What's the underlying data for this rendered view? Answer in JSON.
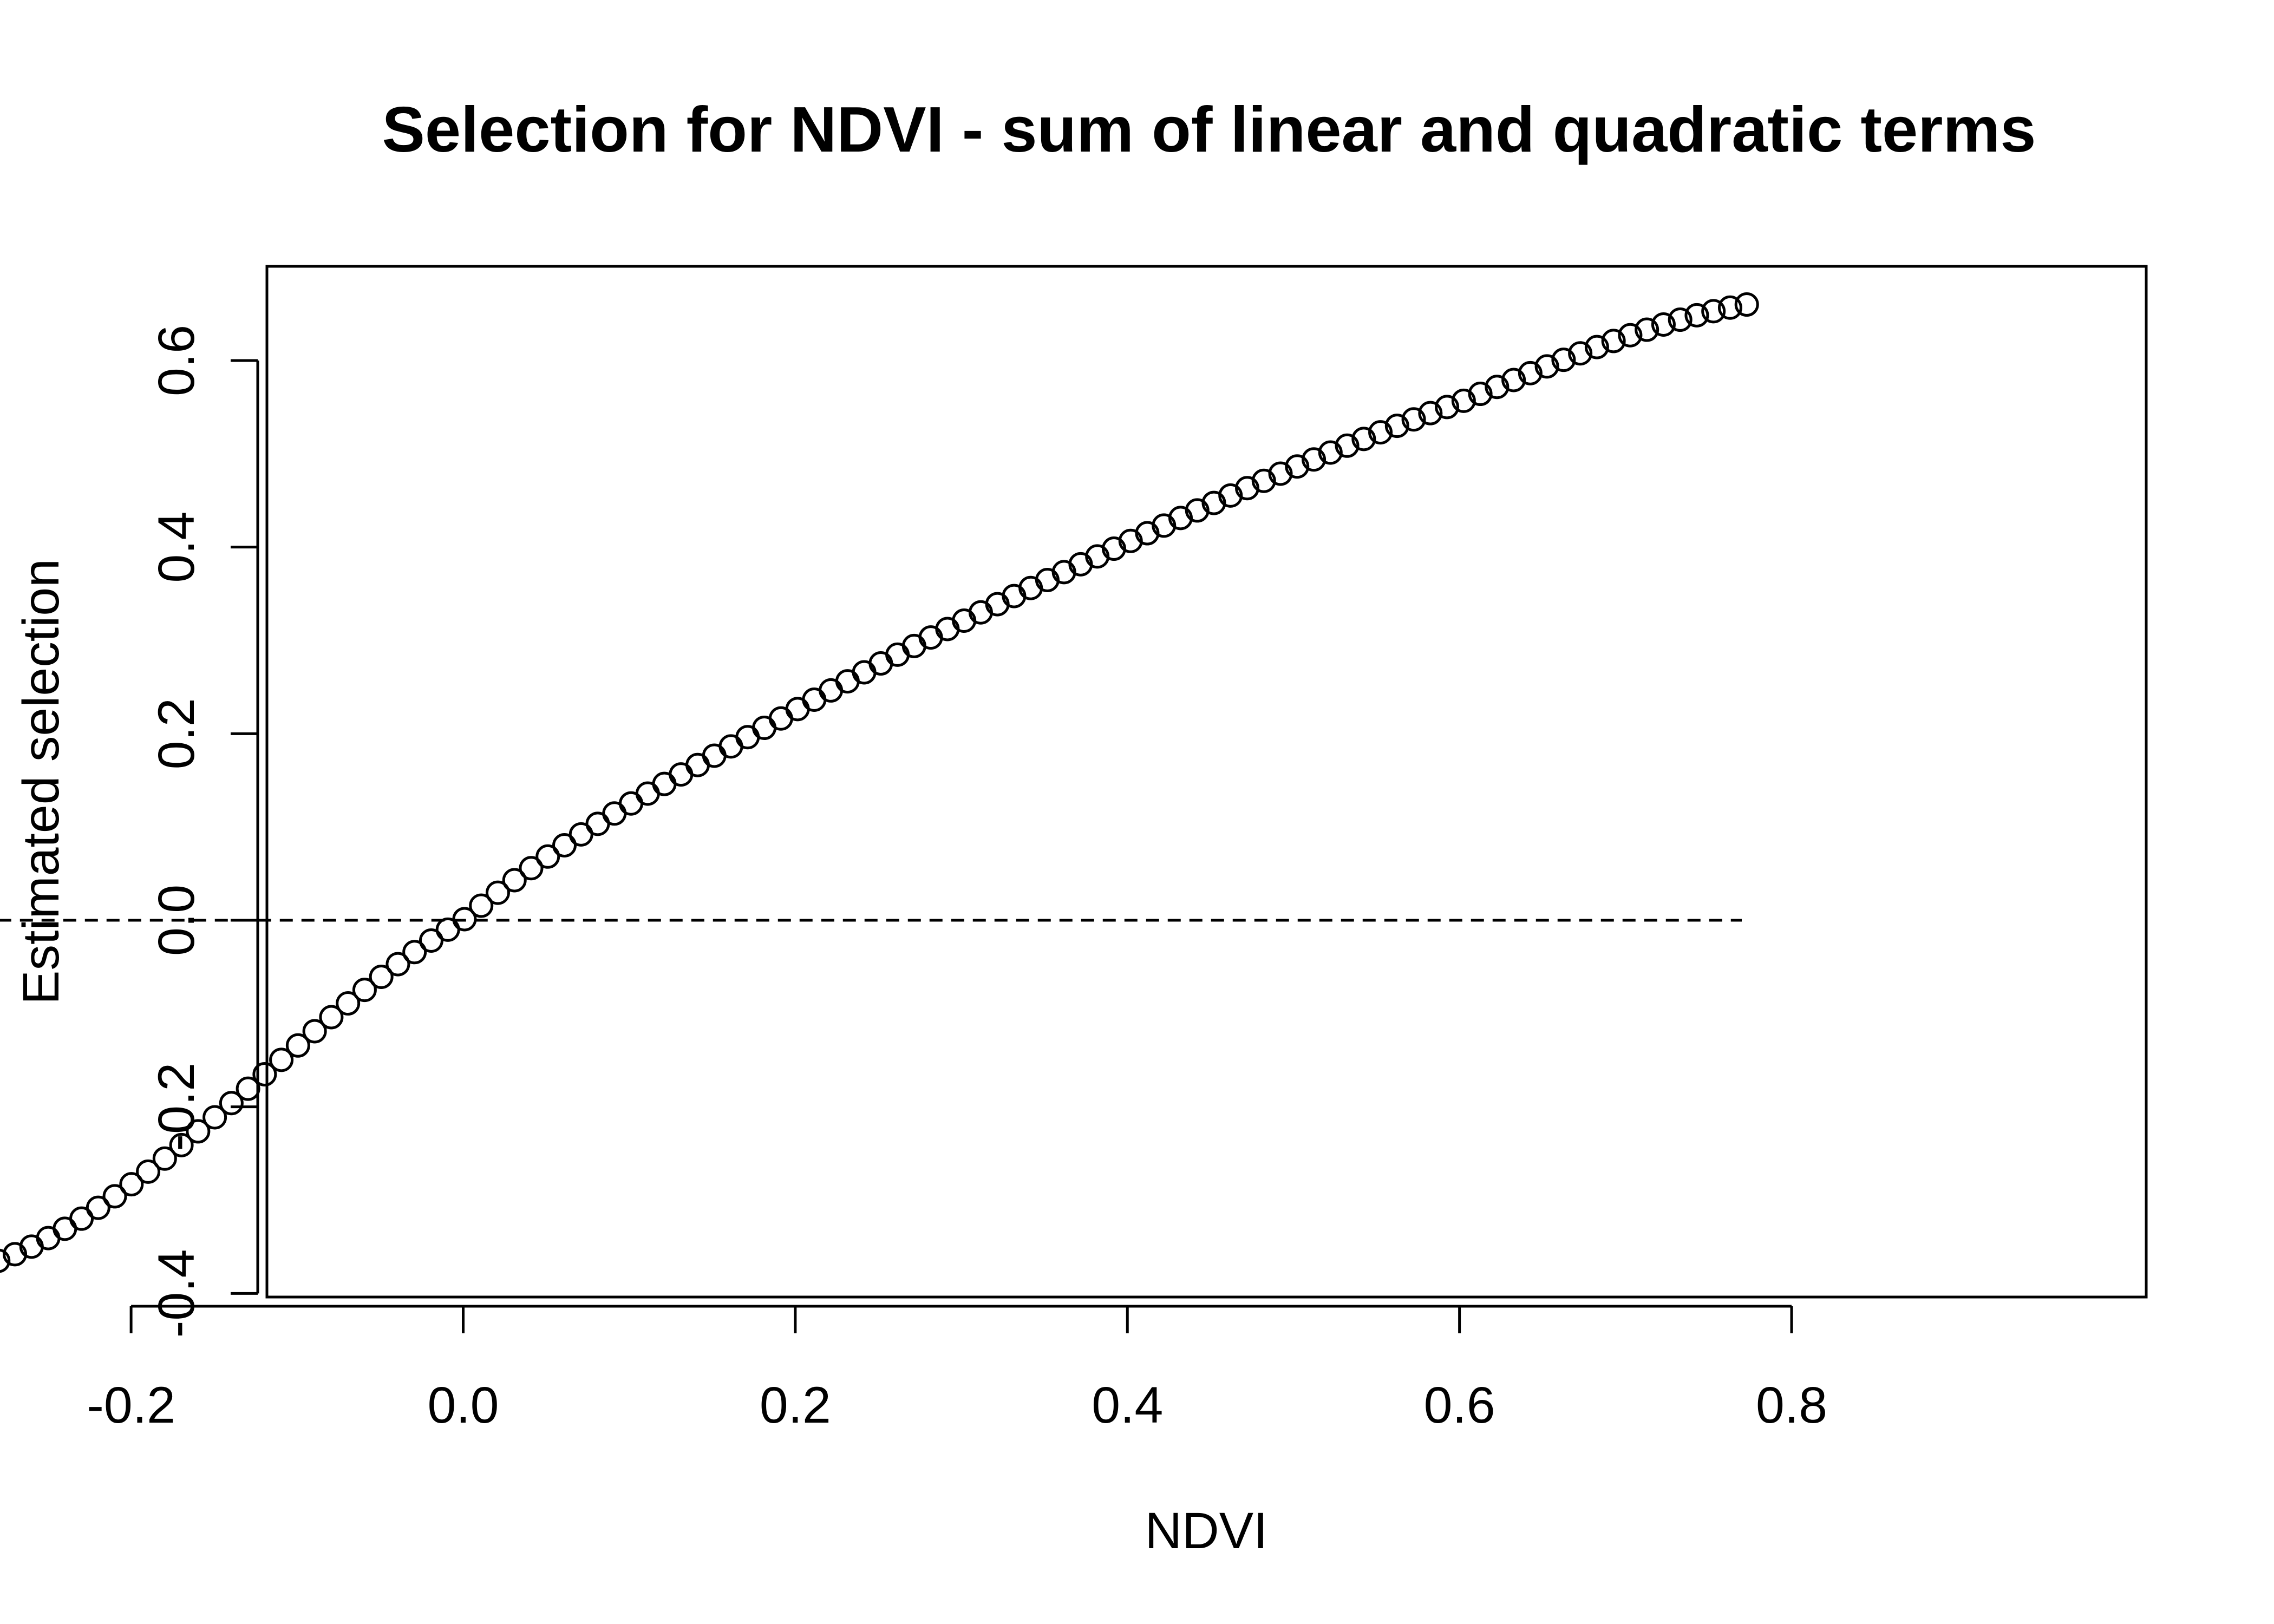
{
  "chart_data": {
    "type": "scatter",
    "title": "Selection for NDVI - sum of linear and quadratic terms",
    "xlabel": "NDVI",
    "ylabel": "Estimated selection",
    "xlim": [
      -0.32,
      0.8
    ],
    "ylim": [
      -0.4,
      0.7
    ],
    "x_ticks": [
      -0.2,
      0.0,
      0.2,
      0.4,
      0.6,
      0.8
    ],
    "x_tick_labels": [
      "-0.2",
      "0.0",
      "0.2",
      "0.4",
      "0.6",
      "0.8"
    ],
    "y_ticks": [
      -0.4,
      -0.2,
      0.0,
      0.2,
      0.4,
      0.6
    ],
    "y_tick_labels": [
      "-0.4",
      "-0.2",
      "0.0",
      "0.2",
      "0.4",
      "0.6"
    ],
    "grid": false,
    "marker": "open-circle",
    "reference_line": {
      "y": 0,
      "x_from": -0.28,
      "x_to": 0.77,
      "style": "dashed"
    },
    "x_start": -0.28,
    "x_end": 0.773,
    "n_points": 106,
    "curve": {
      "x": [
        -0.28,
        0.0,
        0.2,
        0.4,
        0.6,
        0.773
      ],
      "y": [
        -0.365,
        0.0,
        0.225,
        0.405,
        0.555,
        0.66
      ]
    }
  }
}
